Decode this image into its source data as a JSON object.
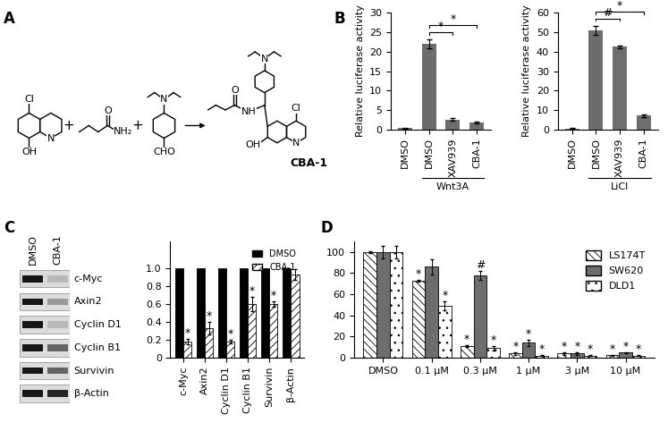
{
  "panel_labels": [
    "A",
    "B",
    "C",
    "D"
  ],
  "scheme": {
    "reactant_1": [
      "Cl",
      "OH",
      "N"
    ],
    "reactant_2": [
      "O",
      "NH₂"
    ],
    "reactant_3": [
      "N",
      "CHO"
    ],
    "plus": "+",
    "product": [
      "N",
      "NH",
      "O",
      "Cl",
      "OH",
      "N"
    ],
    "product_name": "CBA-1"
  },
  "blot": {
    "lanes": [
      "DMSO",
      "CBA-1"
    ],
    "bands": [
      "c-Myc",
      "Axin2",
      "Cyclin D1",
      "Cyclin B1",
      "Survivin",
      "β-Actin"
    ]
  },
  "chart_data": [
    {
      "type": "bar",
      "ylabel": "Relative luciferase activity",
      "categories": [
        "DMSO",
        "DMSO",
        "XAV939",
        "CBA-1"
      ],
      "values": [
        0.3,
        22,
        2.5,
        1.8
      ],
      "errors": [
        0.1,
        1.2,
        0.3,
        0.2
      ],
      "color": "#6d6d6d",
      "ylim": [
        0,
        30
      ],
      "yticks": [
        0,
        5,
        10,
        15,
        20,
        25,
        30
      ],
      "group_label": "Wnt3A",
      "comparisons": [
        {
          "pair": [
            1,
            2
          ],
          "mark": "*"
        },
        {
          "pair": [
            1,
            3
          ],
          "mark": "*"
        }
      ]
    },
    {
      "type": "bar",
      "ylabel": "Relative luciferase activity",
      "categories": [
        "DMSO",
        "DMSO",
        "XAV939",
        "CBA-1"
      ],
      "values": [
        0.5,
        51,
        42.5,
        7
      ],
      "errors": [
        0.2,
        2.5,
        0.6,
        0.5
      ],
      "color": "#6d6d6d",
      "ylim": [
        0,
        60
      ],
      "yticks": [
        0,
        10,
        20,
        30,
        40,
        50,
        60
      ],
      "group_label": "LiCl",
      "comparisons": [
        {
          "pair": [
            1,
            2
          ],
          "mark": "#"
        },
        {
          "pair": [
            1,
            3
          ],
          "mark": "*"
        }
      ]
    },
    {
      "type": "bar",
      "categories": [
        "c-Myc",
        "Axin2",
        "Cyclin D1",
        "Cyclin B1",
        "Survivin",
        "β-Actin"
      ],
      "series": [
        {
          "name": "DMSO",
          "color": "#000000",
          "values": [
            1,
            1,
            1,
            1,
            1,
            1
          ]
        },
        {
          "name": "CBA-1",
          "color": "#ffffff",
          "values": [
            0.18,
            0.33,
            0.18,
            0.6,
            0.6,
            0.93
          ],
          "errors": [
            0.03,
            0.07,
            0.02,
            0.08,
            0.03,
            0.06
          ],
          "marks": [
            "*",
            "*",
            "*",
            "*",
            "*",
            null
          ]
        }
      ],
      "ylim": [
        0,
        1.3
      ],
      "yticks": [
        0,
        0.2,
        0.4,
        0.6,
        0.8,
        {
          "value": 1,
          "label": "1.0"
        }
      ],
      "legend": "upper right"
    },
    {
      "type": "bar",
      "categories": [
        "DMSO",
        "0.1 μM",
        "0.3 μM",
        "1 μM",
        "3 μM",
        "10 μM"
      ],
      "series": [
        {
          "name": "LS174T",
          "color": "#ffffff",
          "values": [
            100,
            73,
            11,
            4,
            4,
            2.5
          ],
          "errors": [
            1,
            1,
            1,
            1.5,
            1,
            0.5
          ],
          "marks": [
            null,
            "*",
            "*",
            "*",
            "*",
            "*"
          ]
        },
        {
          "name": "SW620",
          "color": "#6d6d6d",
          "values": [
            100,
            86,
            78,
            14,
            4,
            5
          ],
          "errors": [
            6,
            7,
            4,
            3,
            1,
            0.5
          ],
          "marks": [
            null,
            null,
            "#",
            "*",
            "*",
            "*"
          ]
        },
        {
          "name": "DLD1",
          "color": "#ffffff",
          "values": [
            100,
            49,
            9,
            2,
            2,
            2
          ],
          "errors": [
            6,
            4,
            2,
            0.5,
            0.5,
            0.5
          ],
          "marks": [
            null,
            "*",
            "*",
            "*",
            "*",
            "*"
          ]
        }
      ],
      "ylim": [
        0,
        110
      ],
      "yticks": [
        0,
        20,
        40,
        60,
        80,
        100
      ],
      "legend": "upper right"
    }
  ]
}
